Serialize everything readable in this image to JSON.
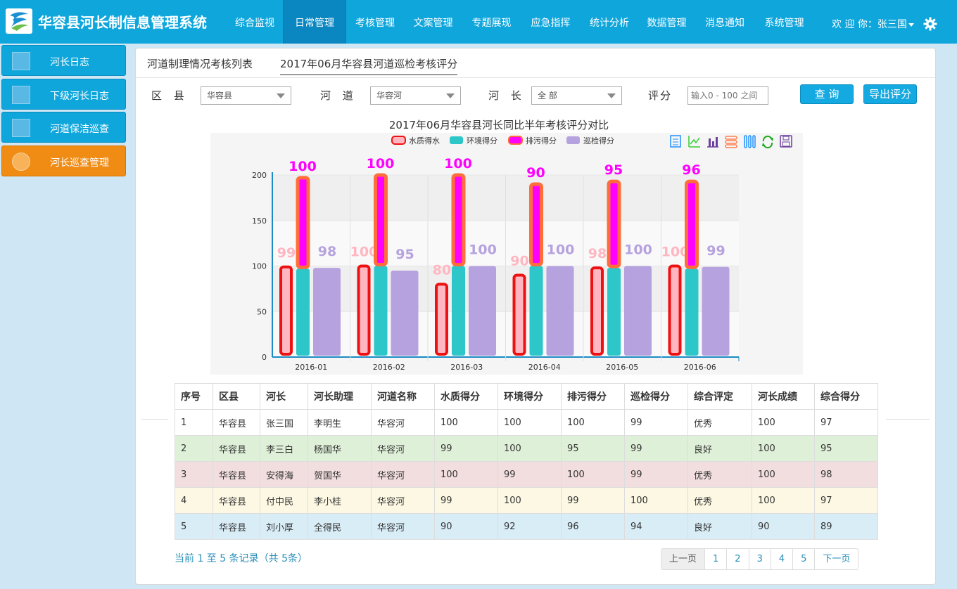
{
  "header": {
    "title": "华容县河长制信息管理系统",
    "nav": [
      "综合监视",
      "日常管理",
      "考核管理",
      "文案管理",
      "专题展现",
      "应急指挥",
      "统计分析",
      "数据管理",
      "消息通知",
      "系统管理"
    ],
    "active_nav": "日常管理",
    "welcome": "欢 迎 你：张三国"
  },
  "sidebar": {
    "items": [
      {
        "label": "河长日志",
        "icon": "monitor-icon"
      },
      {
        "label": "下级河长日志",
        "icon": "chart-icon"
      },
      {
        "label": "河道保洁巡查",
        "icon": "book-icon"
      },
      {
        "label": "河长巡查管理",
        "icon": "disc-icon"
      }
    ],
    "active_index": 3
  },
  "tabs": {
    "list_label": "河道制理情况考核列表",
    "active_label": "2017年06月华容县河道巡检考核评分"
  },
  "filters": {
    "county_label": "区 县",
    "county_value": "华容县",
    "river_label": "河 道",
    "river_value": "华容河",
    "chief_label": "河 长",
    "chief_value": "全 部",
    "score_label": "评分",
    "score_placeholder": "输入0 - 100 之间",
    "query_button": "查 询",
    "export_button": "导出评分"
  },
  "chart_title": "2017年06月华容县河长同比半年考核评分对比",
  "chart_data": {
    "type": "bar",
    "categories": [
      "2016-01",
      "2016-02",
      "2016-03",
      "2016-04",
      "2016-05",
      "2016-06"
    ],
    "series": [
      {
        "name": "水质得水",
        "values": [
          99,
          100,
          80,
          90,
          98,
          100
        ],
        "color": "#ffb6c1"
      },
      {
        "name": "环境得分",
        "values": [
          97,
          100,
          100,
          100,
          98,
          97
        ],
        "color": "#2ec7c9"
      },
      {
        "name": "排污得分",
        "values": [
          100,
          100,
          100,
          90,
          95,
          96
        ],
        "color": "#ff00ff"
      },
      {
        "name": "巡检得分",
        "values": [
          98,
          95,
          100,
          100,
          100,
          99
        ],
        "color": "#b6a2de"
      }
    ],
    "ylim": [
      0,
      200
    ],
    "yticks": [
      0,
      50,
      100,
      150,
      200
    ],
    "legend_position": "top"
  },
  "table": {
    "headers": [
      "序号",
      "区县",
      "河长",
      "河长助理",
      "河道名称",
      "水质得分",
      "环境得分",
      "排污得分",
      "巡检得分",
      "综合评定",
      "河长成绩",
      "综合得分"
    ],
    "rows": [
      [
        "1",
        "华容县",
        "张三国",
        "李明生",
        "华容河",
        "100",
        "100",
        "100",
        "99",
        "优秀",
        "100",
        "97"
      ],
      [
        "2",
        "华容县",
        "李三白",
        "杨国华",
        "华容河",
        "99",
        "100",
        "95",
        "99",
        "良好",
        "100",
        "95"
      ],
      [
        "3",
        "华容县",
        "安得海",
        "贺国华",
        "华容河",
        "100",
        "99",
        "100",
        "99",
        "优秀",
        "100",
        "98"
      ],
      [
        "4",
        "华容县",
        "付中民",
        "李小桂",
        "华容河",
        "99",
        "100",
        "99",
        "100",
        "优秀",
        "100",
        "97"
      ],
      [
        "5",
        "华容县",
        "刘小厚",
        "全得民",
        "华容河",
        "90",
        "92",
        "96",
        "94",
        "良好",
        "90",
        "89"
      ]
    ]
  },
  "footer": {
    "record_info": "当前 1 至 5 条记录（共 5条）",
    "pager": [
      "上一页",
      "1",
      "2",
      "3",
      "4",
      "5",
      "下一页"
    ]
  }
}
